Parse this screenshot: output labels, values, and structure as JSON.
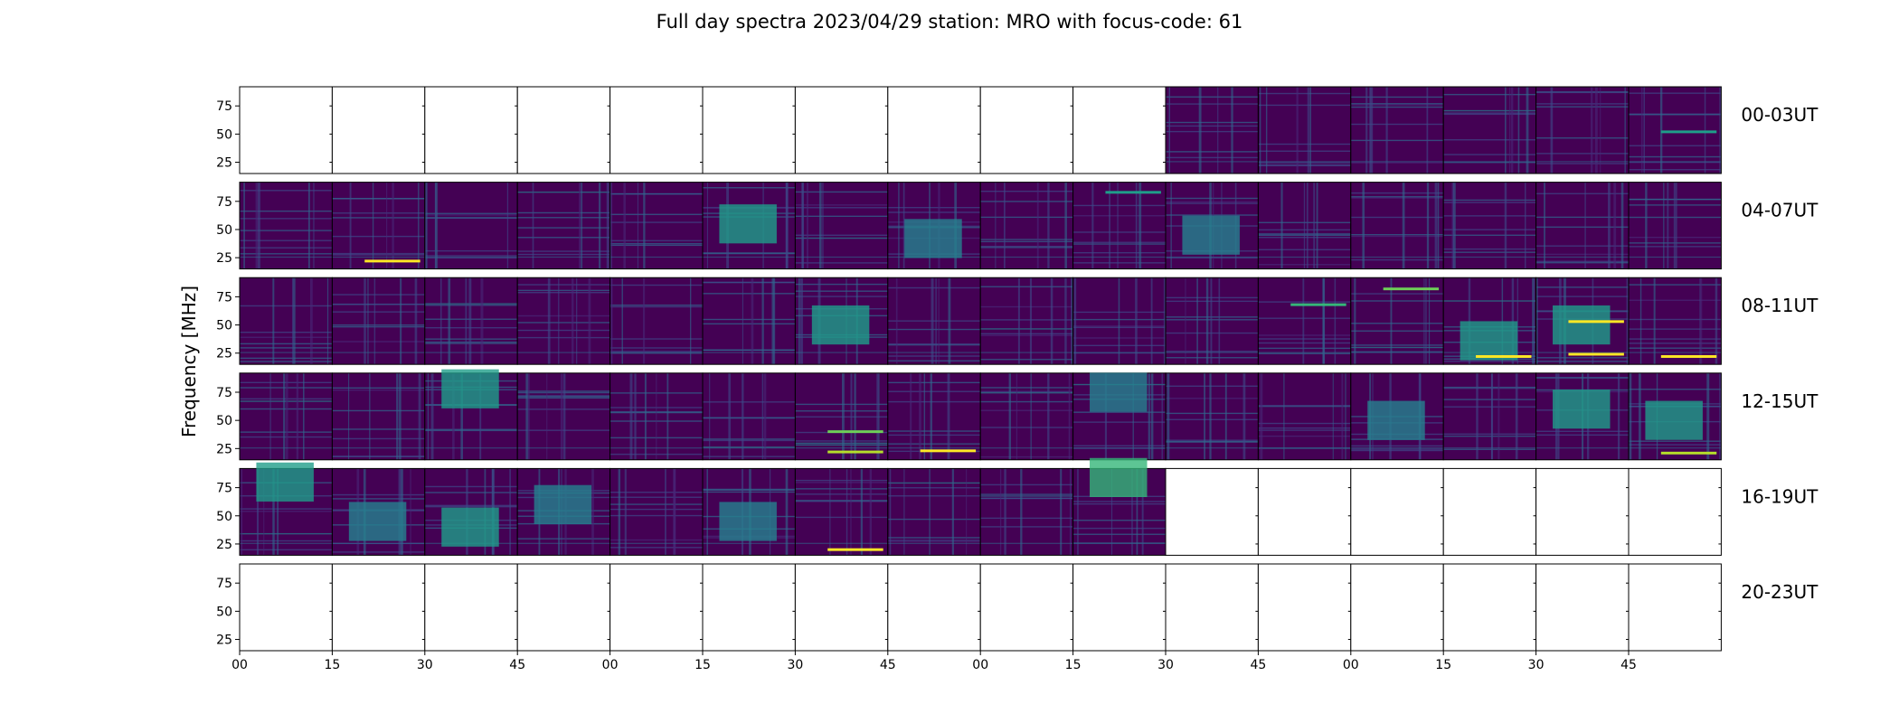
{
  "title": "Full day spectra 2023/04/29 station: MRO with focus-code: 61",
  "colors": {
    "bg": "#440154",
    "viridis": [
      "#440154",
      "#482878",
      "#3e4989",
      "#31688e",
      "#26828e",
      "#1f9e89",
      "#35b779",
      "#6ece58",
      "#b5de2b",
      "#fde725"
    ]
  },
  "chart_data": {
    "type": "heatmap",
    "title": "Full day spectra 2023/04/29 station: MRO with focus-code: 61",
    "ylabel": "Frequency [MHz]",
    "xlabel": "",
    "ylim": [
      15,
      92
    ],
    "yticks": [
      25,
      50,
      75
    ],
    "xtick_labels": [
      "00",
      "15",
      "30",
      "45",
      "00",
      "15",
      "30",
      "45",
      "00",
      "15",
      "30",
      "45",
      "00",
      "15",
      "30",
      "45"
    ],
    "minutes_per_panel": 15,
    "panels_per_row": 16,
    "grid": false,
    "rows": [
      {
        "label": "00-03UT",
        "has_data": [
          false,
          false,
          false,
          false,
          false,
          false,
          false,
          false,
          false,
          false,
          true,
          true,
          true,
          true,
          true,
          true
        ]
      },
      {
        "label": "04-07UT",
        "has_data": [
          true,
          true,
          true,
          true,
          true,
          true,
          true,
          true,
          true,
          true,
          true,
          true,
          true,
          true,
          true,
          true
        ]
      },
      {
        "label": "08-11UT",
        "has_data": [
          true,
          true,
          true,
          true,
          true,
          true,
          true,
          true,
          true,
          true,
          true,
          true,
          true,
          true,
          true,
          true
        ]
      },
      {
        "label": "12-15UT",
        "has_data": [
          true,
          true,
          true,
          true,
          true,
          true,
          true,
          true,
          true,
          true,
          true,
          true,
          true,
          true,
          true,
          true
        ]
      },
      {
        "label": "16-19UT",
        "has_data": [
          true,
          true,
          true,
          true,
          true,
          true,
          true,
          true,
          true,
          true,
          false,
          false,
          false,
          false,
          false,
          false
        ]
      },
      {
        "label": "20-23UT",
        "has_data": [
          false,
          false,
          false,
          false,
          false,
          false,
          false,
          false,
          false,
          false,
          false,
          false,
          false,
          false,
          false,
          false
        ]
      }
    ],
    "bright_features": [
      {
        "row": 0,
        "panel": 15,
        "freq": 52,
        "kind": "line",
        "level": 0.55
      },
      {
        "row": 1,
        "panel": 1,
        "freq": 22,
        "kind": "line",
        "level": 0.95
      },
      {
        "row": 1,
        "panel": 5,
        "freq": 55,
        "kind": "block",
        "level": 0.55
      },
      {
        "row": 1,
        "panel": 7,
        "freq": 42,
        "kind": "block",
        "level": 0.45
      },
      {
        "row": 1,
        "panel": 9,
        "freq": 83,
        "kind": "line",
        "level": 0.6
      },
      {
        "row": 1,
        "panel": 10,
        "freq": 45,
        "kind": "block",
        "level": 0.4
      },
      {
        "row": 2,
        "panel": 6,
        "freq": 50,
        "kind": "block",
        "level": 0.55
      },
      {
        "row": 2,
        "panel": 11,
        "freq": 68,
        "kind": "line",
        "level": 0.65
      },
      {
        "row": 2,
        "panel": 12,
        "freq": 82,
        "kind": "line",
        "level": 0.75
      },
      {
        "row": 2,
        "panel": 13,
        "freq": 36,
        "kind": "block",
        "level": 0.5
      },
      {
        "row": 2,
        "panel": 13,
        "freq": 22,
        "kind": "line",
        "level": 0.95
      },
      {
        "row": 2,
        "panel": 14,
        "freq": 50,
        "kind": "block",
        "level": 0.55
      },
      {
        "row": 2,
        "panel": 14,
        "freq": 53,
        "kind": "line",
        "level": 0.95
      },
      {
        "row": 2,
        "panel": 14,
        "freq": 24,
        "kind": "line",
        "level": 0.95
      },
      {
        "row": 2,
        "panel": 15,
        "freq": 22,
        "kind": "line",
        "level": 0.95
      },
      {
        "row": 3,
        "panel": 2,
        "freq": 78,
        "kind": "block",
        "level": 0.55
      },
      {
        "row": 3,
        "panel": 6,
        "freq": 40,
        "kind": "line",
        "level": 0.75
      },
      {
        "row": 3,
        "panel": 6,
        "freq": 22,
        "kind": "line",
        "level": 0.9
      },
      {
        "row": 3,
        "panel": 7,
        "freq": 23,
        "kind": "line",
        "level": 0.95
      },
      {
        "row": 3,
        "panel": 9,
        "freq": 75,
        "kind": "block",
        "level": 0.45
      },
      {
        "row": 3,
        "panel": 12,
        "freq": 50,
        "kind": "block",
        "level": 0.45
      },
      {
        "row": 3,
        "panel": 14,
        "freq": 60,
        "kind": "block",
        "level": 0.5
      },
      {
        "row": 3,
        "panel": 15,
        "freq": 50,
        "kind": "block",
        "level": 0.55
      },
      {
        "row": 3,
        "panel": 15,
        "freq": 21,
        "kind": "line",
        "level": 0.85
      },
      {
        "row": 4,
        "panel": 0,
        "freq": 80,
        "kind": "block",
        "level": 0.5
      },
      {
        "row": 4,
        "panel": 1,
        "freq": 45,
        "kind": "block",
        "level": 0.45
      },
      {
        "row": 4,
        "panel": 2,
        "freq": 40,
        "kind": "block",
        "level": 0.55
      },
      {
        "row": 4,
        "panel": 3,
        "freq": 60,
        "kind": "block",
        "level": 0.4
      },
      {
        "row": 4,
        "panel": 5,
        "freq": 45,
        "kind": "block",
        "level": 0.45
      },
      {
        "row": 4,
        "panel": 6,
        "freq": 20,
        "kind": "line",
        "level": 0.95
      },
      {
        "row": 4,
        "panel": 9,
        "freq": 84,
        "kind": "block",
        "level": 0.7
      }
    ]
  }
}
